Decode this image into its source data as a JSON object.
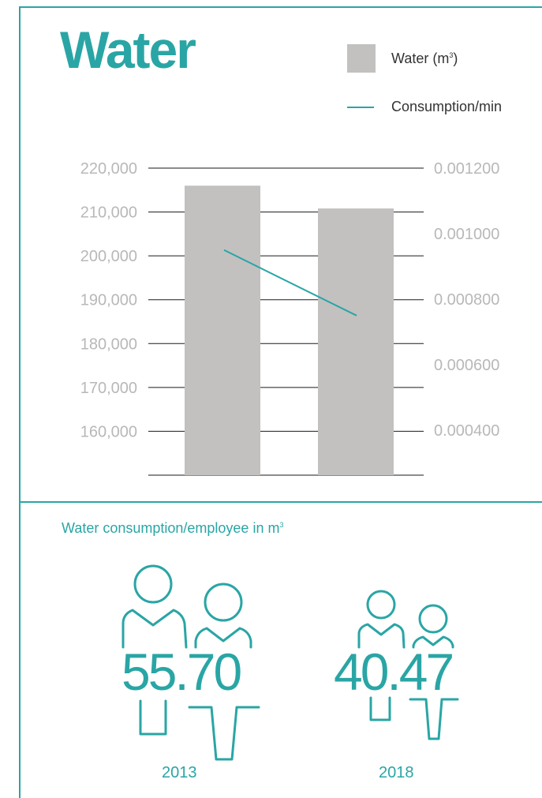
{
  "title": "Water",
  "legend": {
    "bar_label": "Water (m",
    "bar_label_sup": "3",
    "bar_label_end": ")",
    "line_label": "Consumption/min"
  },
  "colors": {
    "accent": "#2aa5a5",
    "bar": "#c2c1c0",
    "tick": "#b8b8b8",
    "grid": "#1a1a1a"
  },
  "chart_data": {
    "type": "bar",
    "categories": [
      "2013",
      "2018"
    ],
    "series": [
      {
        "name": "Water (m³)",
        "type": "bar",
        "axis": "left",
        "values": [
          216000,
          210800
        ]
      },
      {
        "name": "Consumption/min",
        "type": "line",
        "axis": "right",
        "values": [
          0.00095,
          0.00075
        ]
      }
    ],
    "ylim_left": [
      150000,
      220000
    ],
    "ylim_right": [
      0.000263,
      0.0012
    ],
    "left_ticks": [
      "220,000",
      "210,000",
      "200,000",
      "190,000",
      "180,000",
      "170,000",
      "160,000"
    ],
    "left_tick_values": [
      220000,
      210000,
      200000,
      190000,
      180000,
      170000,
      160000
    ],
    "right_ticks": [
      "0.001200",
      "0.001000",
      "0.000800",
      "0.000600",
      "0.000400"
    ],
    "right_tick_values": [
      0.0012,
      0.001,
      0.0008,
      0.0006,
      0.0004
    ],
    "grid": true
  },
  "employee": {
    "subtitle": "Water consumption/employee in m",
    "subtitle_sup": "3",
    "items": [
      {
        "year": "2013",
        "value": "55.70"
      },
      {
        "year": "2018",
        "value": "40.47"
      }
    ]
  }
}
